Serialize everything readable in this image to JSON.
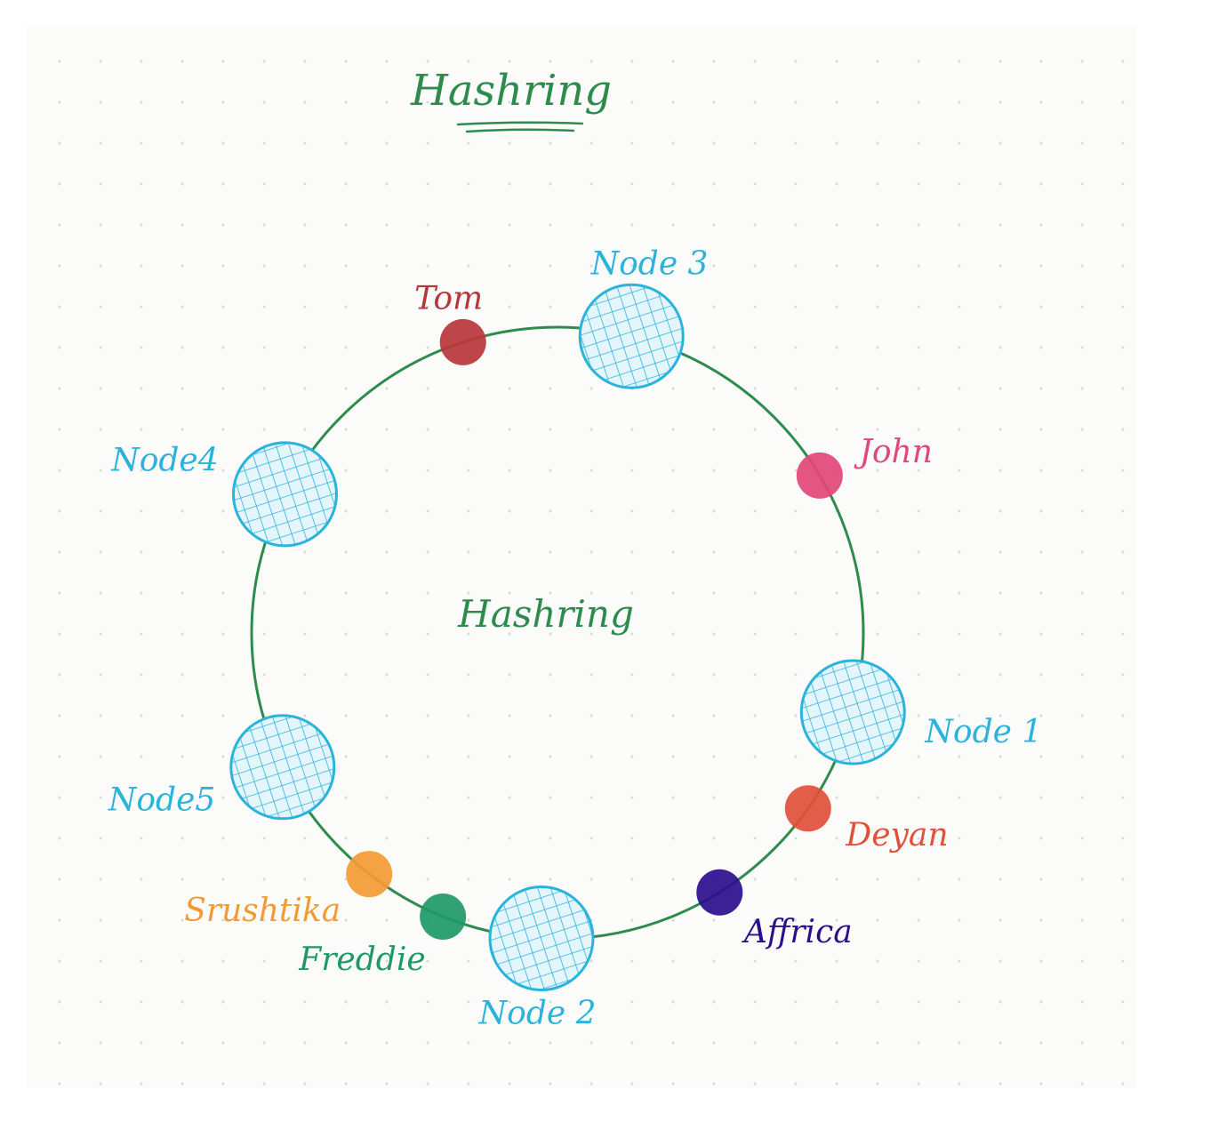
{
  "title": "Hashring",
  "center_label": "Hashring",
  "colors": {
    "ring": "#2e8b4e",
    "title": "#2e8b4e",
    "node": "#2bb3dc",
    "node_fill": "#e4f6fc"
  },
  "nodes": [
    {
      "label": "Node 1",
      "angle_deg": 15
    },
    {
      "label": "Node 2",
      "angle_deg": 93
    },
    {
      "label": "Node 3",
      "angle_deg": -76
    },
    {
      "label": "Node4",
      "angle_deg": -153
    },
    {
      "label": "Node5",
      "angle_deg": 154
    }
  ],
  "keys": [
    {
      "label": "Tom",
      "color": "#b8353a",
      "angle_deg": -108
    },
    {
      "label": "John",
      "color": "#e2477a",
      "angle_deg": -31
    },
    {
      "label": "Deyan",
      "color": "#e0503a",
      "angle_deg": 35
    },
    {
      "label": "Affrica",
      "color": "#2a0e8c",
      "angle_deg": 58
    },
    {
      "label": "Freddie",
      "color": "#1e9966",
      "angle_deg": 112
    },
    {
      "label": "Srushtika",
      "color": "#f39a33",
      "angle_deg": 128
    }
  ]
}
